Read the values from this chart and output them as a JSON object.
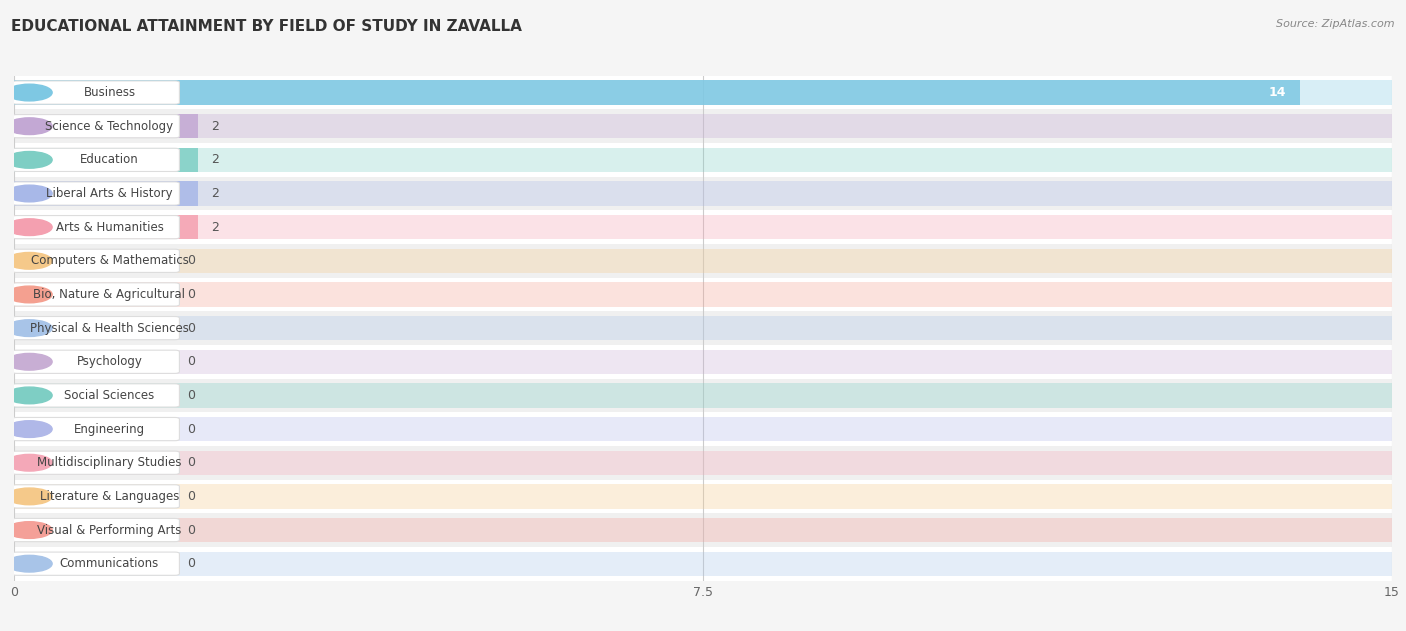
{
  "title": "EDUCATIONAL ATTAINMENT BY FIELD OF STUDY IN ZAVALLA",
  "source": "Source: ZipAtlas.com",
  "categories": [
    "Business",
    "Science & Technology",
    "Education",
    "Liberal Arts & History",
    "Arts & Humanities",
    "Computers & Mathematics",
    "Bio, Nature & Agricultural",
    "Physical & Health Sciences",
    "Psychology",
    "Social Sciences",
    "Engineering",
    "Multidisciplinary Studies",
    "Literature & Languages",
    "Visual & Performing Arts",
    "Communications"
  ],
  "values": [
    14,
    2,
    2,
    2,
    2,
    0,
    0,
    0,
    0,
    0,
    0,
    0,
    0,
    0,
    0
  ],
  "bar_colors": [
    "#7ec8e3",
    "#c3a8d4",
    "#7ecec4",
    "#a8b8e8",
    "#f4a0b0",
    "#f5c98a",
    "#f4a090",
    "#a8c4e8",
    "#c8aed4",
    "#7ecec4",
    "#b0b8e8",
    "#f4a8b8",
    "#f5c98a",
    "#f4a098",
    "#a8c4e8"
  ],
  "xlim": [
    0,
    15
  ],
  "xticks": [
    0,
    7.5,
    15
  ],
  "background_color": "#f0f0f0",
  "row_colors": [
    "#ffffff",
    "#f0f0f0"
  ],
  "title_fontsize": 11,
  "label_fontsize": 9,
  "value_fontsize": 9
}
